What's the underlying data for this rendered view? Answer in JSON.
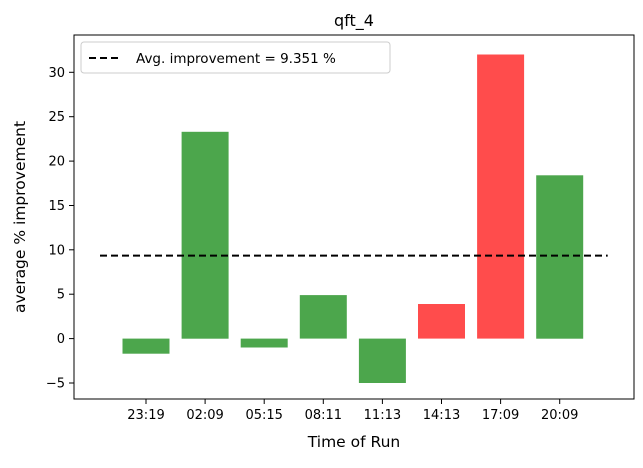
{
  "chart_data": {
    "type": "bar",
    "title": "qft_4",
    "xlabel": "Time of Run",
    "ylabel": "average % improvement",
    "categories": [
      "23:19",
      "02:09",
      "05:15",
      "08:11",
      "11:13",
      "14:13",
      "17:09",
      "20:09"
    ],
    "values": [
      -1.7,
      23.3,
      -1.0,
      4.9,
      -5.0,
      3.9,
      32.0,
      18.4
    ],
    "bar_colors": [
      "#4ca64c",
      "#4ca64c",
      "#4ca64c",
      "#4ca64c",
      "#4ca64c",
      "#ff4c4c",
      "#ff4c4c",
      "#4ca64c"
    ],
    "ylim": [
      -6.8,
      34.2
    ],
    "yticks": [
      -5,
      0,
      5,
      10,
      15,
      20,
      25,
      30
    ],
    "ytick_labels": [
      "−5",
      "0",
      "5",
      "10",
      "15",
      "20",
      "25",
      "30"
    ],
    "reference_line": {
      "value": 9.351,
      "style": "dashed",
      "color": "#000000"
    },
    "legend": {
      "label": "Avg. improvement = 9.351 %",
      "position": "top-left"
    },
    "grid": false
  }
}
